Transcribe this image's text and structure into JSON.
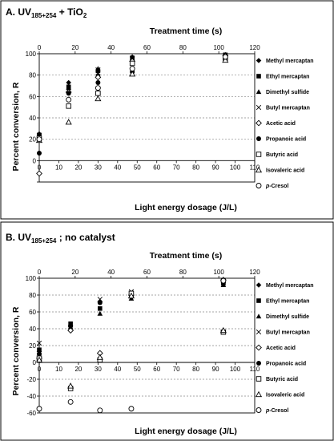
{
  "chart_data": [
    {
      "type": "scatter",
      "title": "A. UV",
      "title_sub": "185+254",
      "title_suffix": " + TiO",
      "title_sub2": "2",
      "xlabel": "Light energy dosage (J/L)",
      "x2label": "Treatment time (s)",
      "ylabel": "Percent conversion, R",
      "xlim": [
        0,
        110
      ],
      "x2lim": [
        0,
        120
      ],
      "ylim": [
        -20,
        100
      ],
      "xticks": [
        0,
        10,
        20,
        30,
        40,
        50,
        60,
        70,
        80,
        90,
        100,
        110
      ],
      "x2ticks": [
        0,
        20,
        40,
        60,
        80,
        100,
        120
      ],
      "yticks": [
        -20,
        0,
        20,
        40,
        60,
        80,
        100
      ],
      "ylabels_shown": [
        0,
        20,
        40,
        60,
        80,
        100
      ],
      "grid": "horizontal-dashed",
      "legend_position": "right",
      "series": [
        {
          "name": "Methyl mercaptan",
          "marker": "diamond",
          "x": [
            0,
            15,
            30,
            47.5,
            95
          ],
          "y": [
            25,
            73,
            80,
            97,
            99
          ]
        },
        {
          "name": "Ethyl mercaptan",
          "marker": "square",
          "x": [
            0,
            15,
            30,
            47.5,
            95
          ],
          "y": [
            24,
            69,
            84,
            96,
            99
          ]
        },
        {
          "name": "Dimethyl sulfide",
          "marker": "triangle",
          "x": [
            0,
            15,
            30,
            47.5,
            95
          ],
          "y": [
            22,
            68,
            86,
            95,
            99
          ]
        },
        {
          "name": "Butyl mercaptan",
          "marker": "x",
          "x": [
            0,
            15,
            30,
            47.5,
            95
          ],
          "y": [
            20,
            65,
            85,
            96,
            98
          ]
        },
        {
          "name": "Acetic acid",
          "marker": "diamond-open",
          "x": [
            0,
            15,
            30,
            47.5,
            95
          ],
          "y": [
            -12,
            64,
            78,
            93,
            98
          ]
        },
        {
          "name": "Propanoic acid",
          "marker": "circle",
          "x": [
            0,
            15,
            30,
            47.5,
            95
          ],
          "y": [
            7,
            63,
            73,
            83,
            97
          ]
        },
        {
          "name": "Butyric acid",
          "marker": "square-open",
          "x": [
            0,
            15,
            30,
            47.5,
            95
          ],
          "y": [
            21,
            51,
            63,
            91,
            96
          ]
        },
        {
          "name": "Isovaleric acid",
          "marker": "triangle-open",
          "x": [
            0,
            15,
            30,
            47.5,
            95
          ],
          "y": [
            19,
            36,
            58,
            81,
            94
          ]
        },
        {
          "name": "p-Cresol",
          "marker": "circle-open",
          "x": [
            0,
            15,
            30,
            47.5,
            95
          ],
          "y": [
            20,
            57,
            68,
            86,
            97
          ]
        }
      ]
    },
    {
      "type": "scatter",
      "title": "B. UV",
      "title_sub": "185+254",
      "title_suffix": " ; no catalyst",
      "title_sub2": "",
      "xlabel": "Light energy dosage (J/L)",
      "x2label": "Treatment time (s)",
      "ylabel": "Percent conversion, R",
      "xlim": [
        0,
        110
      ],
      "x2lim": [
        0,
        120
      ],
      "ylim": [
        -60,
        100
      ],
      "xticks": [
        0,
        10,
        20,
        30,
        40,
        50,
        60,
        70,
        80,
        90,
        100,
        110
      ],
      "x2ticks": [
        0,
        20,
        40,
        60,
        80,
        100,
        120
      ],
      "yticks": [
        -60,
        -40,
        -20,
        0,
        20,
        40,
        60,
        80,
        100
      ],
      "ylabels_shown": [
        -60,
        -40,
        -20,
        0,
        20,
        40,
        60,
        80,
        100
      ],
      "grid": "horizontal-dashed",
      "legend_position": "right",
      "series": [
        {
          "name": "Methyl mercaptan",
          "marker": "diamond",
          "x": [
            0,
            16,
            31,
            47,
            94
          ],
          "y": [
            13,
            44,
            72,
            82,
            96
          ]
        },
        {
          "name": "Ethyl mercaptan",
          "marker": "square",
          "x": [
            0,
            16,
            31,
            47,
            94
          ],
          "y": [
            15,
            46,
            64,
            80,
            94
          ]
        },
        {
          "name": "Dimethyl sulfide",
          "marker": "triangle",
          "x": [
            0,
            16,
            31,
            47,
            94
          ],
          "y": [
            12,
            42,
            58,
            76,
            92
          ]
        },
        {
          "name": "Butyl mercaptan",
          "marker": "x",
          "x": [
            0,
            16,
            31,
            47,
            94
          ],
          "y": [
            23,
            40,
            75,
            84,
            97
          ]
        },
        {
          "name": "Acetic acid",
          "marker": "diamond-open",
          "x": [
            0,
            16,
            31,
            47,
            94
          ],
          "y": [
            5,
            38,
            11,
            80,
            98
          ]
        },
        {
          "name": "Propanoic acid",
          "marker": "circle",
          "x": [
            0,
            16,
            31,
            47,
            94
          ],
          "y": [
            10,
            43,
            71,
            78,
            95
          ]
        },
        {
          "name": "Butyric acid",
          "marker": "square-open",
          "x": [
            0,
            16,
            31,
            47,
            94
          ],
          "y": [
            5,
            -31,
            3,
            82,
            36
          ]
        },
        {
          "name": "Isovaleric acid",
          "marker": "triangle-open",
          "x": [
            0,
            16,
            31,
            47,
            94
          ],
          "y": [
            3,
            -28,
            6,
            79,
            38
          ]
        },
        {
          "name": "p-Cresol",
          "marker": "circle-open",
          "x": [
            0,
            16,
            31,
            47,
            94
          ],
          "y": [
            -55,
            -47,
            -57,
            -55,
            97
          ]
        }
      ]
    }
  ]
}
